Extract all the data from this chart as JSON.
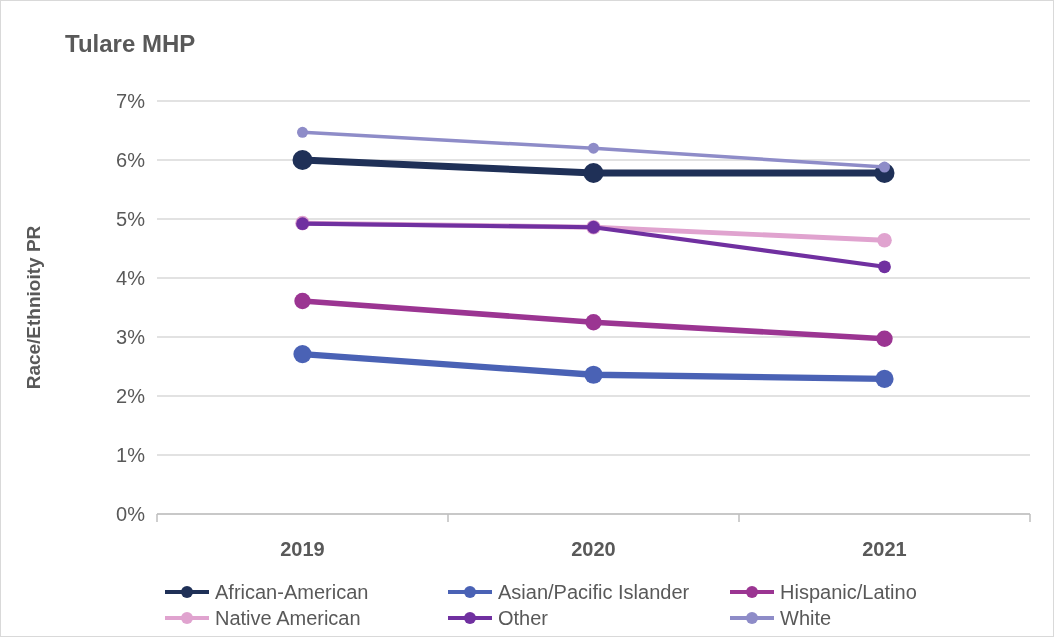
{
  "chart_data": {
    "type": "line",
    "title": "Tulare MHP",
    "ylabel": "Race/Ethnioity PR",
    "categories": [
      "2019",
      "2020",
      "2021"
    ],
    "series": [
      {
        "name": "African-American",
        "color": "#1f3057",
        "values": [
          6.0,
          5.78,
          5.78
        ]
      },
      {
        "name": "Asian/Pacific Islander",
        "color": "#4a62b5",
        "values": [
          2.71,
          2.36,
          2.29
        ]
      },
      {
        "name": "Hispanic/Latino",
        "color": "#9b3592",
        "values": [
          3.61,
          3.25,
          2.97
        ]
      },
      {
        "name": "Native American",
        "color": "#e0a3cf",
        "values": [
          4.93,
          4.86,
          4.64
        ]
      },
      {
        "name": "Other",
        "color": "#7030a0",
        "values": [
          4.92,
          4.86,
          4.19
        ]
      },
      {
        "name": "White",
        "color": "#8e8cc8",
        "values": [
          6.47,
          6.2,
          5.88
        ]
      }
    ],
    "ylim": [
      0,
      7
    ],
    "yticks": [
      {
        "value": 0,
        "label": "0%"
      },
      {
        "value": 1,
        "label": "1%"
      },
      {
        "value": 2,
        "label": "2%"
      },
      {
        "value": 3,
        "label": "3%"
      },
      {
        "value": 4,
        "label": "4%"
      },
      {
        "value": 5,
        "label": "5%"
      },
      {
        "value": 6,
        "label": "6%"
      },
      {
        "value": 7,
        "label": "7%"
      }
    ],
    "grid": "y",
    "legend": "bottom",
    "marker": "circle",
    "line_style": "solid"
  }
}
